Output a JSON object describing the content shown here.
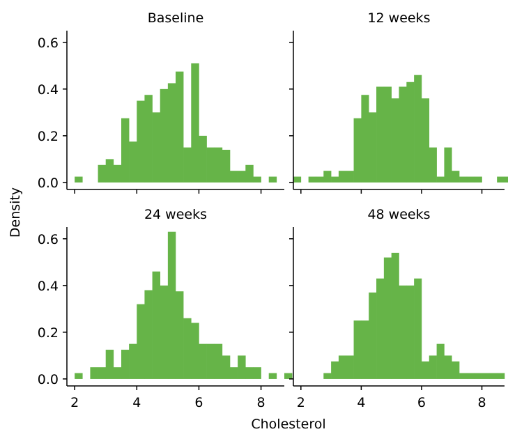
{
  "chart_data": {
    "type": "bar",
    "layout": "facet-grid 2x2",
    "xlabel": "Cholesterol",
    "ylabel": "Density",
    "xlim": [
      1.8,
      8.7
    ],
    "ylim": [
      0,
      0.65
    ],
    "xticks": [
      2,
      4,
      6,
      8
    ],
    "yticks": [
      0.0,
      0.2,
      0.4,
      0.6
    ],
    "ytick_labels": [
      "0.0",
      "0.2",
      "0.4",
      "0.6"
    ],
    "bin_width": 0.25,
    "bar_color": "#66b448",
    "grid": false,
    "legend": "none",
    "panels": [
      {
        "title": "Baseline",
        "bins": [
          [
            2.125,
            0.025
          ],
          [
            2.875,
            0.075
          ],
          [
            3.125,
            0.1
          ],
          [
            3.375,
            0.075
          ],
          [
            3.625,
            0.275
          ],
          [
            3.875,
            0.175
          ],
          [
            4.125,
            0.35
          ],
          [
            4.375,
            0.375
          ],
          [
            4.625,
            0.3
          ],
          [
            4.875,
            0.4
          ],
          [
            5.125,
            0.425
          ],
          [
            5.375,
            0.475
          ],
          [
            5.625,
            0.15
          ],
          [
            5.875,
            0.51
          ],
          [
            6.125,
            0.2
          ],
          [
            6.375,
            0.15
          ],
          [
            6.625,
            0.15
          ],
          [
            6.875,
            0.14
          ],
          [
            7.125,
            0.05
          ],
          [
            7.375,
            0.05
          ],
          [
            7.625,
            0.075
          ],
          [
            7.875,
            0.025
          ],
          [
            8.375,
            0.025
          ]
        ]
      },
      {
        "title": "12 weeks",
        "bins": [
          [
            1.875,
            0.025
          ],
          [
            2.375,
            0.025
          ],
          [
            2.625,
            0.025
          ],
          [
            2.875,
            0.05
          ],
          [
            3.125,
            0.025
          ],
          [
            3.375,
            0.05
          ],
          [
            3.625,
            0.05
          ],
          [
            3.875,
            0.275
          ],
          [
            4.125,
            0.375
          ],
          [
            4.375,
            0.3
          ],
          [
            4.625,
            0.41
          ],
          [
            4.875,
            0.41
          ],
          [
            5.125,
            0.36
          ],
          [
            5.375,
            0.41
          ],
          [
            5.625,
            0.43
          ],
          [
            5.875,
            0.46
          ],
          [
            6.125,
            0.36
          ],
          [
            6.375,
            0.15
          ],
          [
            6.625,
            0.025
          ],
          [
            6.875,
            0.15
          ],
          [
            7.125,
            0.05
          ],
          [
            7.375,
            0.025
          ],
          [
            7.625,
            0.025
          ],
          [
            7.875,
            0.025
          ],
          [
            8.625,
            0.025
          ],
          [
            8.875,
            0.025
          ]
        ]
      },
      {
        "title": "24 weeks",
        "bins": [
          [
            2.125,
            0.025
          ],
          [
            2.625,
            0.05
          ],
          [
            2.875,
            0.05
          ],
          [
            3.125,
            0.125
          ],
          [
            3.375,
            0.05
          ],
          [
            3.625,
            0.125
          ],
          [
            3.875,
            0.15
          ],
          [
            4.125,
            0.32
          ],
          [
            4.375,
            0.38
          ],
          [
            4.625,
            0.46
          ],
          [
            4.875,
            0.4
          ],
          [
            5.125,
            0.63
          ],
          [
            5.375,
            0.375
          ],
          [
            5.625,
            0.26
          ],
          [
            5.875,
            0.24
          ],
          [
            6.125,
            0.15
          ],
          [
            6.375,
            0.15
          ],
          [
            6.625,
            0.15
          ],
          [
            6.875,
            0.1
          ],
          [
            7.125,
            0.05
          ],
          [
            7.375,
            0.1
          ],
          [
            7.625,
            0.05
          ],
          [
            7.875,
            0.05
          ],
          [
            8.375,
            0.025
          ],
          [
            8.875,
            0.025
          ]
        ]
      },
      {
        "title": "48 weeks",
        "bins": [
          [
            2.875,
            0.025
          ],
          [
            3.125,
            0.075
          ],
          [
            3.375,
            0.1
          ],
          [
            3.625,
            0.1
          ],
          [
            3.875,
            0.25
          ],
          [
            4.125,
            0.25
          ],
          [
            4.375,
            0.37
          ],
          [
            4.625,
            0.43
          ],
          [
            4.875,
            0.52
          ],
          [
            5.125,
            0.54
          ],
          [
            5.375,
            0.4
          ],
          [
            5.625,
            0.4
          ],
          [
            5.875,
            0.43
          ],
          [
            6.125,
            0.075
          ],
          [
            6.375,
            0.1
          ],
          [
            6.625,
            0.15
          ],
          [
            6.875,
            0.1
          ],
          [
            7.125,
            0.075
          ],
          [
            7.375,
            0.025
          ],
          [
            7.625,
            0.025
          ],
          [
            7.875,
            0.025
          ],
          [
            8.125,
            0.025
          ],
          [
            8.375,
            0.025
          ],
          [
            8.625,
            0.025
          ]
        ]
      }
    ]
  }
}
